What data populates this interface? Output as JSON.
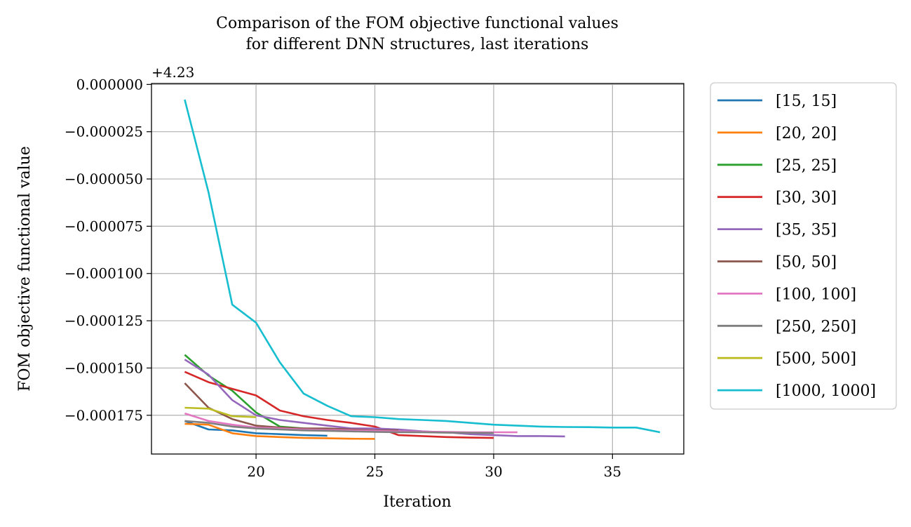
{
  "chart_data": {
    "type": "line",
    "title": [
      "Comparison of the FOM objective functional values",
      "for different DNN structures, last iterations"
    ],
    "xlabel": "Iteration",
    "ylabel": "FOM objective functional value",
    "offset_label": "+4.23",
    "offset": 4.23,
    "xlim": [
      15.6,
      38.0
    ],
    "ylim": [
      -0.0001955,
      5e-07
    ],
    "xticks": [
      20,
      25,
      30,
      35
    ],
    "xtick_labels": [
      "20",
      "25",
      "30",
      "35"
    ],
    "yticks": [
      0,
      -2.5e-05,
      -5e-05,
      -7.5e-05,
      -0.0001,
      -0.000125,
      -0.00015,
      -0.000175
    ],
    "ytick_labels": [
      "0.000000",
      "−0.000025",
      "−0.000050",
      "−0.000075",
      "−0.000100",
      "−0.000125",
      "−0.000150",
      "−0.000175"
    ],
    "grid": true,
    "legend_position": "outside-right",
    "series": [
      {
        "name": "[15, 15]",
        "color": "#1f77b4",
        "x": [
          17,
          18,
          19,
          20,
          21,
          22,
          23
        ],
        "y": [
          -0.000178,
          -0.0001825,
          -0.000183,
          -0.0001845,
          -0.000185,
          -0.0001855,
          -0.0001858
        ]
      },
      {
        "name": "[20, 20]",
        "color": "#ff7f0e",
        "x": [
          17,
          18,
          19,
          20,
          21,
          22,
          23,
          24,
          25
        ],
        "y": [
          -0.0001795,
          -0.00018,
          -0.0001845,
          -0.000186,
          -0.0001865,
          -0.000187,
          -0.0001872,
          -0.0001874,
          -0.0001875
        ]
      },
      {
        "name": "[25, 25]",
        "color": "#2ca02c",
        "x": [
          17,
          18,
          19,
          20,
          21,
          22,
          23,
          24
        ],
        "y": [
          -0.000143,
          -0.000154,
          -0.000162,
          -0.0001735,
          -0.000181,
          -0.000182,
          -0.0001825,
          -0.000183
        ]
      },
      {
        "name": "[30, 30]",
        "color": "#d62728",
        "x": [
          17,
          18,
          19,
          20,
          21,
          22,
          23,
          24,
          25,
          26,
          27,
          28,
          29,
          30
        ],
        "y": [
          -0.000152,
          -0.0001575,
          -0.000161,
          -0.0001645,
          -0.0001725,
          -0.0001755,
          -0.0001775,
          -0.000179,
          -0.000181,
          -0.0001855,
          -0.000186,
          -0.0001865,
          -0.0001868,
          -0.000187
        ]
      },
      {
        "name": "[35, 35]",
        "color": "#9467bd",
        "x": [
          17,
          18,
          19,
          20,
          21,
          22,
          23,
          24,
          25,
          26,
          27,
          28,
          29,
          30,
          31,
          32,
          33
        ],
        "y": [
          -0.0001455,
          -0.0001535,
          -0.000167,
          -0.000175,
          -0.0001775,
          -0.000179,
          -0.0001805,
          -0.000182,
          -0.000182,
          -0.0001825,
          -0.0001835,
          -0.000184,
          -0.000185,
          -0.0001855,
          -0.000186,
          -0.000186,
          -0.0001862
        ]
      },
      {
        "name": "[50, 50]",
        "color": "#8c564b",
        "x": [
          17,
          18,
          19,
          20,
          21,
          22,
          23,
          24,
          25,
          26
        ],
        "y": [
          -0.000158,
          -0.000171,
          -0.000177,
          -0.0001805,
          -0.0001815,
          -0.000182,
          -0.000182,
          -0.0001825,
          -0.000183,
          -0.000183
        ]
      },
      {
        "name": "[100, 100]",
        "color": "#e377c2",
        "x": [
          17,
          18,
          19,
          20,
          21,
          22,
          23,
          24,
          25,
          26,
          27,
          28,
          29,
          30,
          31
        ],
        "y": [
          -0.000174,
          -0.000178,
          -0.00018,
          -0.0001815,
          -0.000182,
          -0.0001825,
          -0.0001828,
          -0.000183,
          -0.0001833,
          -0.0001835,
          -0.0001837,
          -0.0001838,
          -0.000184,
          -0.000184,
          -0.000184
        ]
      },
      {
        "name": "[250, 250]",
        "color": "#7f7f7f",
        "x": [
          17,
          18,
          19,
          20,
          21,
          22,
          23,
          24,
          25,
          26,
          27,
          28,
          29,
          30
        ],
        "y": [
          -0.000178,
          -0.000179,
          -0.000181,
          -0.000182,
          -0.0001825,
          -0.000183,
          -0.0001832,
          -0.0001835,
          -0.0001838,
          -0.000184,
          -0.000184,
          -0.0001842,
          -0.0001843,
          -0.0001844
        ]
      },
      {
        "name": "[500, 500]",
        "color": "#bcbd22",
        "x": [
          17,
          18,
          19,
          20
        ],
        "y": [
          -0.000171,
          -0.0001715,
          -0.0001755,
          -0.000176
        ]
      },
      {
        "name": "[1000, 1000]",
        "color": "#17becf",
        "x": [
          17,
          18,
          19,
          20,
          21,
          22,
          23,
          24,
          25,
          26,
          27,
          28,
          29,
          30,
          31,
          32,
          33,
          34,
          35,
          36,
          37
        ],
        "y": [
          -8e-06,
          -5.7e-05,
          -0.0001165,
          -0.000126,
          -0.000147,
          -0.0001635,
          -0.00017,
          -0.0001755,
          -0.000176,
          -0.000177,
          -0.0001775,
          -0.000178,
          -0.000179,
          -0.00018,
          -0.0001805,
          -0.000181,
          -0.0001812,
          -0.0001813,
          -0.0001815,
          -0.0001815,
          -0.000184
        ]
      }
    ]
  }
}
